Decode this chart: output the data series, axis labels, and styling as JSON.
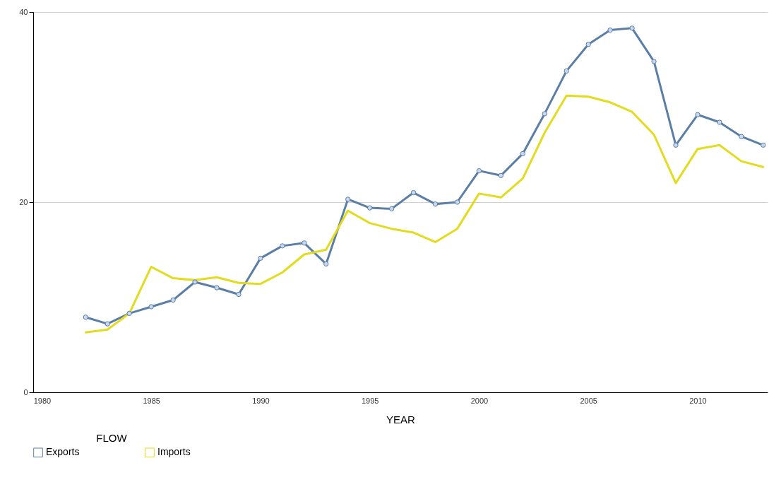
{
  "chart_data": {
    "type": "line",
    "xlabel": "YEAR",
    "legend_title": "FLOW",
    "x": [
      1982,
      1983,
      1984,
      1985,
      1986,
      1987,
      1988,
      1989,
      1990,
      1991,
      1992,
      1993,
      1994,
      1995,
      1996,
      1997,
      1998,
      1999,
      2000,
      2001,
      2002,
      2003,
      2004,
      2005,
      2006,
      2007,
      2008,
      2009,
      2010,
      2011,
      2012,
      2013
    ],
    "series": [
      {
        "name": "Exports",
        "color": "#5b7ea6",
        "marker": "circle",
        "values": [
          7.9,
          7.2,
          8.3,
          9.0,
          9.7,
          11.6,
          11.0,
          10.3,
          14.1,
          15.4,
          15.7,
          13.5,
          20.3,
          19.4,
          19.3,
          21.0,
          19.8,
          20.0,
          23.3,
          22.8,
          25.1,
          29.3,
          33.8,
          36.6,
          38.1,
          38.3,
          34.8,
          26.0,
          29.2,
          28.4,
          26.9,
          26.0
        ]
      },
      {
        "name": "Imports",
        "color": "#e3dc1e",
        "marker": "none",
        "values": [
          6.3,
          6.6,
          8.3,
          13.2,
          12.0,
          11.8,
          12.1,
          11.5,
          11.4,
          12.6,
          14.5,
          15.0,
          19.1,
          17.8,
          17.2,
          16.8,
          15.8,
          17.2,
          20.9,
          20.5,
          22.5,
          27.3,
          31.2,
          31.1,
          30.5,
          29.5,
          27.1,
          22.0,
          25.6,
          26.0,
          24.3,
          23.7
        ]
      }
    ],
    "xlim": [
      1979.6,
      2013.2
    ],
    "xticks": [
      1980,
      1985,
      1990,
      1995,
      2000,
      2005,
      2010
    ],
    "ylim": [
      0,
      40
    ],
    "yticks": [
      0,
      20,
      40
    ],
    "grid": "y",
    "legend": "bottom",
    "line_style": "solid"
  }
}
